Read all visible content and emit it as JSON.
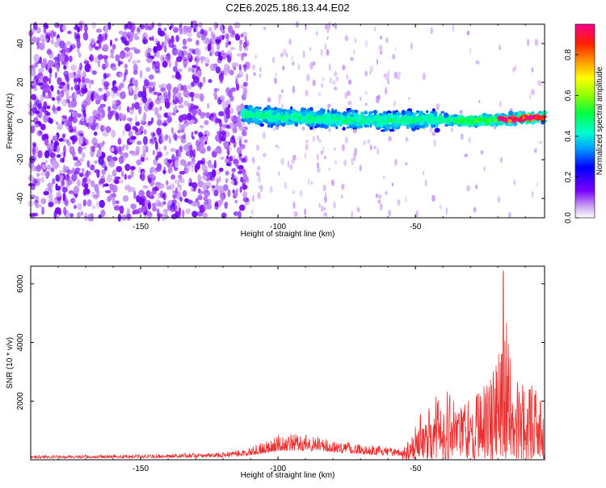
{
  "title": "C2E6.2025.186.13.44.E02",
  "chart_data": [
    {
      "type": "heatmap",
      "xlabel": "Height of straight line (km)",
      "ylabel": "Frequency (Hz)",
      "xlim": [
        -190,
        -3
      ],
      "ylim": [
        -50,
        50
      ],
      "xticks": [
        -150,
        -100,
        -50
      ],
      "yticks": [
        -40,
        -20,
        0,
        20,
        40
      ],
      "colorbar": {
        "label": "Normalized spectral amplitude",
        "range": [
          0,
          0.95
        ],
        "ticks": [
          0.0,
          0.2,
          0.4,
          0.6,
          0.8
        ]
      },
      "ridge": {
        "start_km": -113,
        "end_km": -3,
        "center_hz": [
          {
            "x": -113,
            "y": 4
          },
          {
            "x": -100,
            "y": 2
          },
          {
            "x": -80,
            "y": 1
          },
          {
            "x": -60,
            "y": 0
          },
          {
            "x": -45,
            "y": 1
          },
          {
            "x": -30,
            "y": 0
          },
          {
            "x": -15,
            "y": 1
          },
          {
            "x": -3,
            "y": 2
          }
        ]
      },
      "grid": false
    },
    {
      "type": "line",
      "xlabel": "Height of straight line (km)",
      "ylabel": "SNR (10 * v/v)",
      "xlim": [
        -190,
        -3
      ],
      "ylim": [
        0,
        6600
      ],
      "xticks": [
        -150,
        -100,
        -50
      ],
      "yticks": [
        2000,
        4000,
        6000
      ],
      "color": "#e83030",
      "envelope": [
        {
          "x": -190,
          "y": 150
        },
        {
          "x": -150,
          "y": 180
        },
        {
          "x": -120,
          "y": 250
        },
        {
          "x": -110,
          "y": 420
        },
        {
          "x": -100,
          "y": 850
        },
        {
          "x": -90,
          "y": 900
        },
        {
          "x": -80,
          "y": 700
        },
        {
          "x": -60,
          "y": 420
        },
        {
          "x": -55,
          "y": 380
        },
        {
          "x": -50,
          "y": 1200
        },
        {
          "x": -45,
          "y": 2200
        },
        {
          "x": -40,
          "y": 2500
        },
        {
          "x": -30,
          "y": 2100
        },
        {
          "x": -25,
          "y": 2600
        },
        {
          "x": -20,
          "y": 3400
        },
        {
          "x": -18,
          "y": 6500
        },
        {
          "x": -15,
          "y": 3000
        },
        {
          "x": -10,
          "y": 2600
        },
        {
          "x": -5,
          "y": 2500
        },
        {
          "x": -3,
          "y": 1500
        }
      ],
      "grid": false
    }
  ]
}
